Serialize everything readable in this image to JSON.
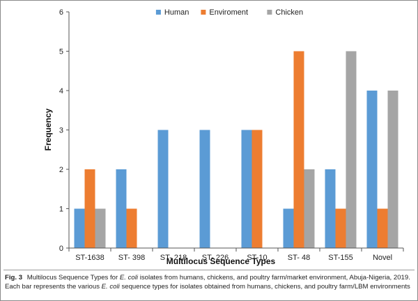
{
  "chart_data": {
    "type": "bar",
    "title": "",
    "xlabel": "Multilocus Sequence Types",
    "ylabel": "Frequency",
    "ylim": [
      0,
      6
    ],
    "yticks": [
      "0",
      "1",
      "2",
      "3",
      "4",
      "5",
      "6"
    ],
    "categories": [
      "ST-1638",
      "ST- 398",
      "ST- 218",
      "ST- 226",
      "ST-10",
      "ST- 48",
      "ST-155",
      "Novel"
    ],
    "series": [
      {
        "name": "Human",
        "color": "#5b9bd5",
        "values": [
          1,
          2,
          3,
          3,
          3,
          1,
          2,
          4
        ]
      },
      {
        "name": "Enviroment",
        "color": "#ed7d31",
        "values": [
          2,
          1,
          0,
          0,
          3,
          5,
          1,
          1
        ]
      },
      {
        "name": "Chicken",
        "color": "#a5a5a5",
        "values": [
          1,
          0,
          0,
          0,
          0,
          2,
          5,
          4
        ]
      }
    ],
    "legend_position": "top-center",
    "grid": false
  },
  "caption": {
    "fig_label": "Fig. 3",
    "part1": "Multilocus Sequence Types for ",
    "italic1": "E. coli",
    "part2": " isolates from humans, chickens, and poultry farm/market environment, Abuja-Nigeria, 2019. Each bar represents the various ",
    "italic2": "E. coli",
    "part3": " sequence types for isolates obtained from humans, chickens, and poultry farm/LBM environments"
  }
}
